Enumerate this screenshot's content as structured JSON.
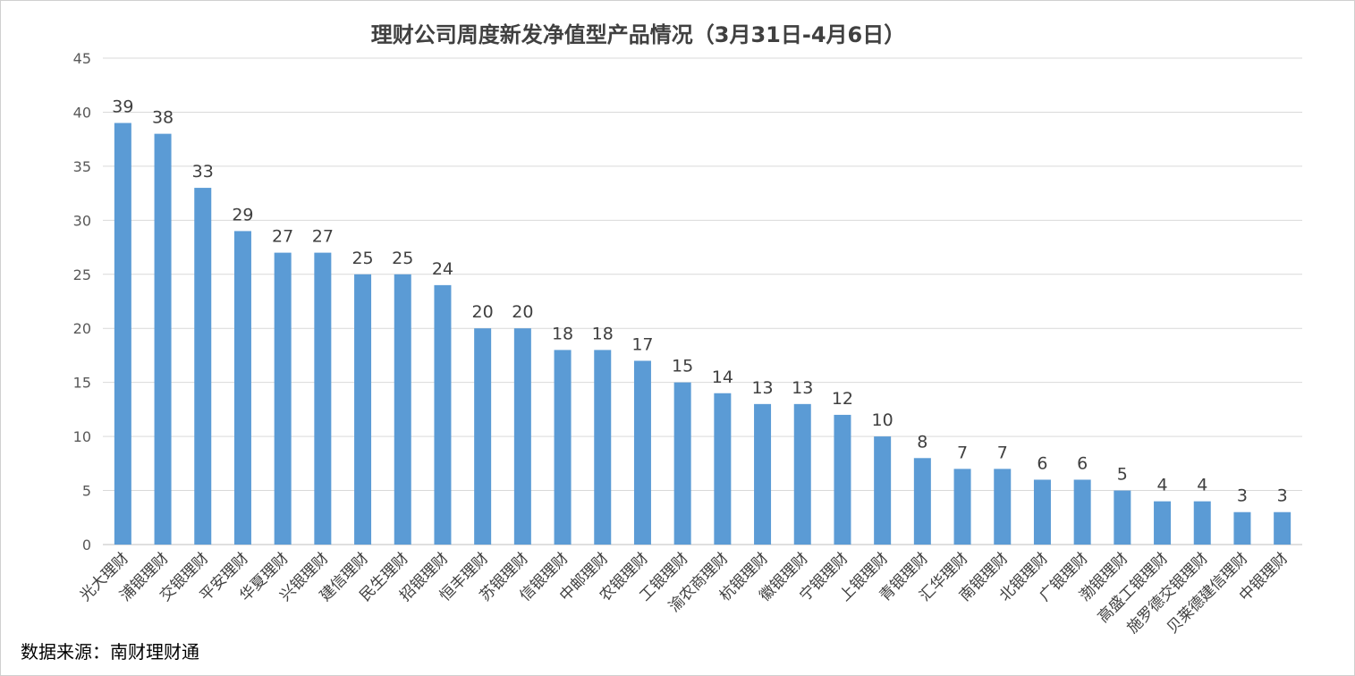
{
  "chart_data": {
    "type": "bar",
    "title": "理财公司周度新发净值型产品情况（3月31日-4月6日）",
    "xlabel": "",
    "ylabel": "",
    "ylim": [
      0,
      45
    ],
    "yticks": [
      0,
      5,
      10,
      15,
      20,
      25,
      30,
      35,
      40,
      45
    ],
    "grid": true,
    "legend": "none",
    "bar_color": "#5b9bd5",
    "categories": [
      "光大理财",
      "浦银理财",
      "交银理财",
      "平安理财",
      "华夏理财",
      "兴银理财",
      "建信理财",
      "民生理财",
      "招银理财",
      "恒丰理财",
      "苏银理财",
      "信银理财",
      "中邮理财",
      "农银理财",
      "工银理财",
      "渝农商理财",
      "杭银理财",
      "徽银理财",
      "宁银理财",
      "上银理财",
      "青银理财",
      "汇华理财",
      "南银理财",
      "北银理财",
      "广银理财",
      "渤银理财",
      "高盛工银理财",
      "施罗德交银理财",
      "贝莱德建信理财",
      "中银理财"
    ],
    "values": [
      39,
      38,
      33,
      29,
      27,
      27,
      25,
      25,
      24,
      20,
      20,
      18,
      18,
      17,
      15,
      14,
      13,
      13,
      12,
      10,
      8,
      7,
      7,
      6,
      6,
      5,
      4,
      4,
      3,
      3
    ]
  },
  "footer": {
    "source": "数据来源：南财理财通"
  }
}
